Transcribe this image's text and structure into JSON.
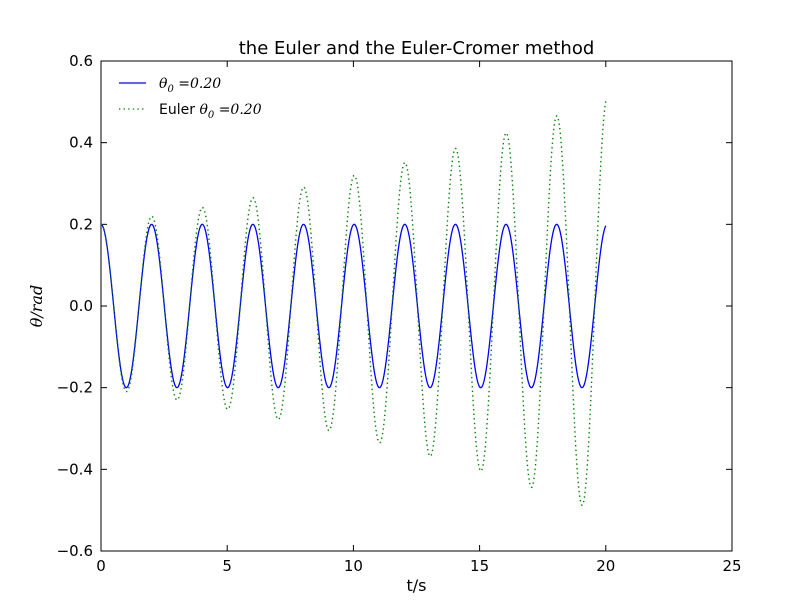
{
  "chart_data": {
    "type": "line",
    "title": "the Euler and the Euler-Cromer method",
    "xlabel": "t/s",
    "ylabel": "θ/rad",
    "xlim": [
      0,
      25
    ],
    "ylim": [
      -0.6,
      0.6
    ],
    "xticks": [
      0,
      5,
      10,
      15,
      20,
      25
    ],
    "xtick_labels": [
      "0",
      "5",
      "10",
      "15",
      "20",
      "25"
    ],
    "yticks": [
      -0.6,
      -0.4,
      -0.2,
      0.0,
      0.2,
      0.4,
      0.6
    ],
    "ytick_labels": [
      "−0.6",
      "−0.4",
      "−0.2",
      "0.0",
      "0.2",
      "0.4",
      "0.6"
    ],
    "grid": false,
    "legend_position": "top-left",
    "series": [
      {
        "name": "θ0 =0.20",
        "legend_prefix": "",
        "legend_math": "θ0 =0.20",
        "style": "solid",
        "color": "#0000ff",
        "t_end": 20,
        "period": 2.006,
        "amplitude_start": 0.2,
        "amplitude_end": 0.2,
        "peaks": [
          [
            0,
            0.2
          ],
          [
            1,
            -0.2
          ],
          [
            2,
            0.2
          ],
          [
            3,
            -0.2
          ],
          [
            4,
            0.2
          ],
          [
            5,
            -0.2
          ],
          [
            6,
            0.2
          ],
          [
            7,
            -0.2
          ],
          [
            8,
            0.2
          ],
          [
            9,
            -0.2
          ],
          [
            10,
            0.2
          ],
          [
            11,
            -0.2
          ],
          [
            12,
            0.2
          ],
          [
            13,
            -0.2
          ],
          [
            14,
            0.2
          ],
          [
            15,
            -0.2
          ],
          [
            16,
            0.2
          ],
          [
            17,
            -0.2
          ],
          [
            18,
            0.2
          ],
          [
            19,
            -0.2
          ],
          [
            20,
            0.195
          ]
        ]
      },
      {
        "name": "Euler θ0 =0.20",
        "legend_prefix": "Euler ",
        "legend_math": "θ0 =0.20",
        "style": "dotted",
        "color": "#008000",
        "t_end": 20,
        "period": 2.006,
        "amplitude_start": 0.2,
        "amplitude_end": 0.51,
        "peaks": [
          [
            0,
            0.2
          ],
          [
            1,
            -0.21
          ],
          [
            2,
            0.22
          ],
          [
            3,
            -0.23
          ],
          [
            4,
            0.245
          ],
          [
            5,
            -0.255
          ],
          [
            6,
            0.268
          ],
          [
            7,
            -0.282
          ],
          [
            8,
            0.297
          ],
          [
            9,
            -0.31
          ],
          [
            10,
            0.327
          ],
          [
            11,
            -0.345
          ],
          [
            12,
            0.358
          ],
          [
            13,
            -0.378
          ],
          [
            14,
            0.397
          ],
          [
            15,
            -0.418
          ],
          [
            16,
            0.437
          ],
          [
            17,
            -0.462
          ],
          [
            18,
            0.487
          ],
          [
            19,
            -0.51
          ],
          [
            20,
            0.51
          ]
        ]
      }
    ]
  }
}
